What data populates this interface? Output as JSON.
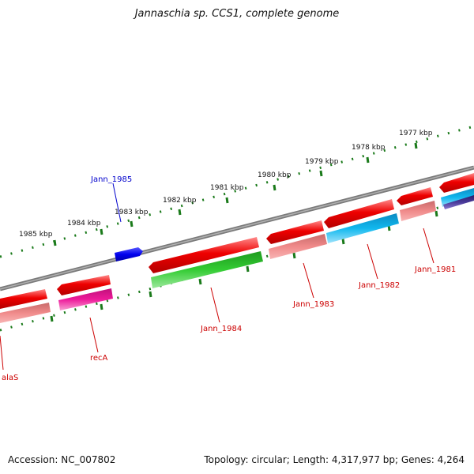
{
  "title": "Jannaschia sp. CCS1, complete genome",
  "footer": {
    "accession": "Accession: NC_007802",
    "summary": "Topology: circular; Length: 4,317,977 bp; Genes: 4,264"
  },
  "ticks": [
    "1985 kbp",
    "1984 kbp",
    "1983 kbp",
    "1982 kbp",
    "1981 kbp",
    "1980 kbp",
    "1979 kbp",
    "1978 kbp",
    "1977 kbp"
  ],
  "gene_labels": [
    {
      "text": "Jann_1985",
      "color": "#0000cc"
    },
    {
      "text": "alaS",
      "color": "#cc0000"
    },
    {
      "text": "recA",
      "color": "#cc0000"
    },
    {
      "text": "Jann_1984",
      "color": "#cc0000"
    },
    {
      "text": "Jann_1983",
      "color": "#cc0000"
    },
    {
      "text": "Jann_1982",
      "color": "#cc0000"
    },
    {
      "text": "Jann_1981",
      "color": "#cc0000"
    }
  ],
  "colors": {
    "backbone": "#808080",
    "tick": "#1a7a1a",
    "gene_red": "#ee0000",
    "gene_pink": "#f08080",
    "gene_magenta": "#ee1a9a",
    "gene_green": "#33cc33",
    "gene_cyan": "#11b8ee",
    "gene_blue": "#0000ee",
    "gene_navy": "#4a3a9a"
  }
}
